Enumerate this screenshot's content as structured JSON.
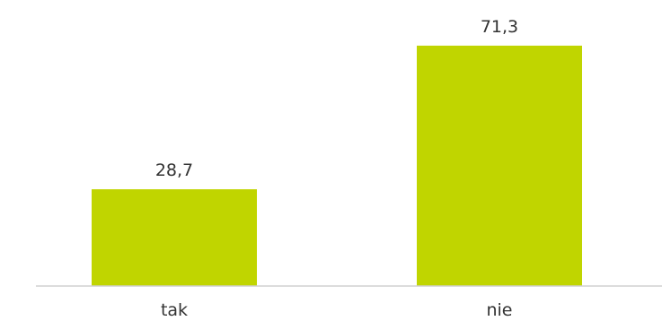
{
  "chart_data": {
    "type": "bar",
    "categories": [
      "tak",
      "nie"
    ],
    "values": [
      28.7,
      71.3
    ],
    "value_labels": [
      "28,7",
      "71,3"
    ],
    "title": "",
    "xlabel": "",
    "ylabel": "",
    "ylim": [
      0,
      80
    ],
    "grid": false,
    "legend": "none",
    "colors": {
      "bar": "#c0d500",
      "axis": "#d0d0d0",
      "text": "#333333"
    }
  }
}
